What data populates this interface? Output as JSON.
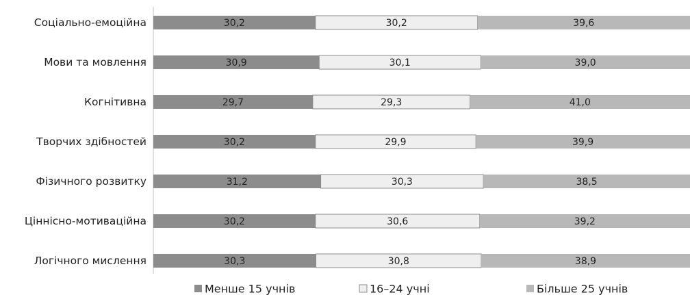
{
  "chart_data": {
    "type": "bar",
    "orientation": "horizontal",
    "stacked": "percent",
    "categories": [
      "Соціально-емоційна",
      "Мови та мовлення",
      "Когнітивна",
      "Творчих здібностей",
      "Фізичного розвитку",
      "Ціннісно-мотиваційна",
      "Логічного мислення"
    ],
    "series": [
      {
        "name": "Менше 15 учнів",
        "values": [
          30.2,
          30.9,
          29.7,
          30.2,
          31.2,
          30.2,
          30.3
        ],
        "labels": [
          "30,2",
          "30,9",
          "29,7",
          "30,2",
          "31,2",
          "30,2",
          "30,3"
        ],
        "color": "#8c8c8c"
      },
      {
        "name": "16–24 учні",
        "values": [
          30.2,
          30.1,
          29.3,
          29.9,
          30.3,
          30.6,
          30.8
        ],
        "labels": [
          "30,2",
          "30,1",
          "29,3",
          "29,9",
          "30,3",
          "30,6",
          "30,8"
        ],
        "color": "#efefef"
      },
      {
        "name": "Більше 25 учнів",
        "values": [
          39.6,
          39.0,
          41.0,
          39.9,
          38.5,
          39.2,
          38.9
        ],
        "labels": [
          "39,6",
          "39,0",
          "41,0",
          "39,9",
          "38,5",
          "39,2",
          "38,9"
        ],
        "color": "#b8b8b8"
      }
    ],
    "xlim": [
      0,
      100
    ],
    "grid": false,
    "legend": "bottom"
  }
}
